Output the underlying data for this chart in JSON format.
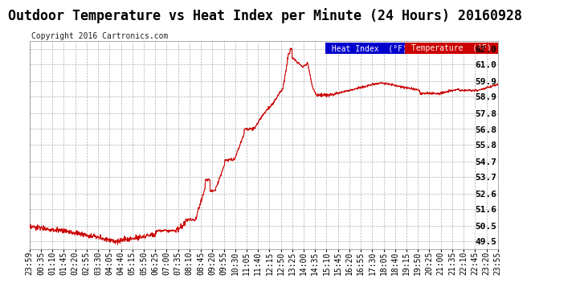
{
  "title": "Outdoor Temperature vs Heat Index per Minute (24 Hours) 20160928",
  "copyright": "Copyright 2016 Cartronics.com",
  "ylabel_ticks": [
    49.5,
    50.5,
    51.6,
    52.6,
    53.7,
    54.7,
    55.8,
    56.8,
    57.8,
    58.9,
    59.9,
    61.0,
    62.0
  ],
  "ylim": [
    49.0,
    62.5
  ],
  "xtick_labels": [
    "23:59",
    "00:35",
    "01:10",
    "01:45",
    "02:20",
    "02:55",
    "03:30",
    "04:05",
    "04:40",
    "05:15",
    "05:50",
    "06:25",
    "07:00",
    "07:35",
    "08:10",
    "08:45",
    "09:20",
    "09:55",
    "10:30",
    "11:05",
    "11:40",
    "12:15",
    "12:50",
    "13:25",
    "14:00",
    "14:35",
    "15:10",
    "15:45",
    "16:20",
    "16:55",
    "17:30",
    "18:05",
    "18:40",
    "19:15",
    "19:50",
    "20:25",
    "21:00",
    "21:35",
    "22:10",
    "22:45",
    "23:20",
    "23:55"
  ],
  "bg_color": "#ffffff",
  "plot_bg_color": "#ffffff",
  "grid_color": "#b0b0b0",
  "line_color": "#cc0000",
  "legend_heat_bg": "#0000cc",
  "legend_temp_bg": "#cc0000",
  "legend_heat_text": "Heat Index  (°F)",
  "legend_temp_text": "Temperature  (°F)",
  "title_fontsize": 12,
  "copyright_fontsize": 7,
  "tick_fontsize": 7,
  "legend_fontsize": 7
}
